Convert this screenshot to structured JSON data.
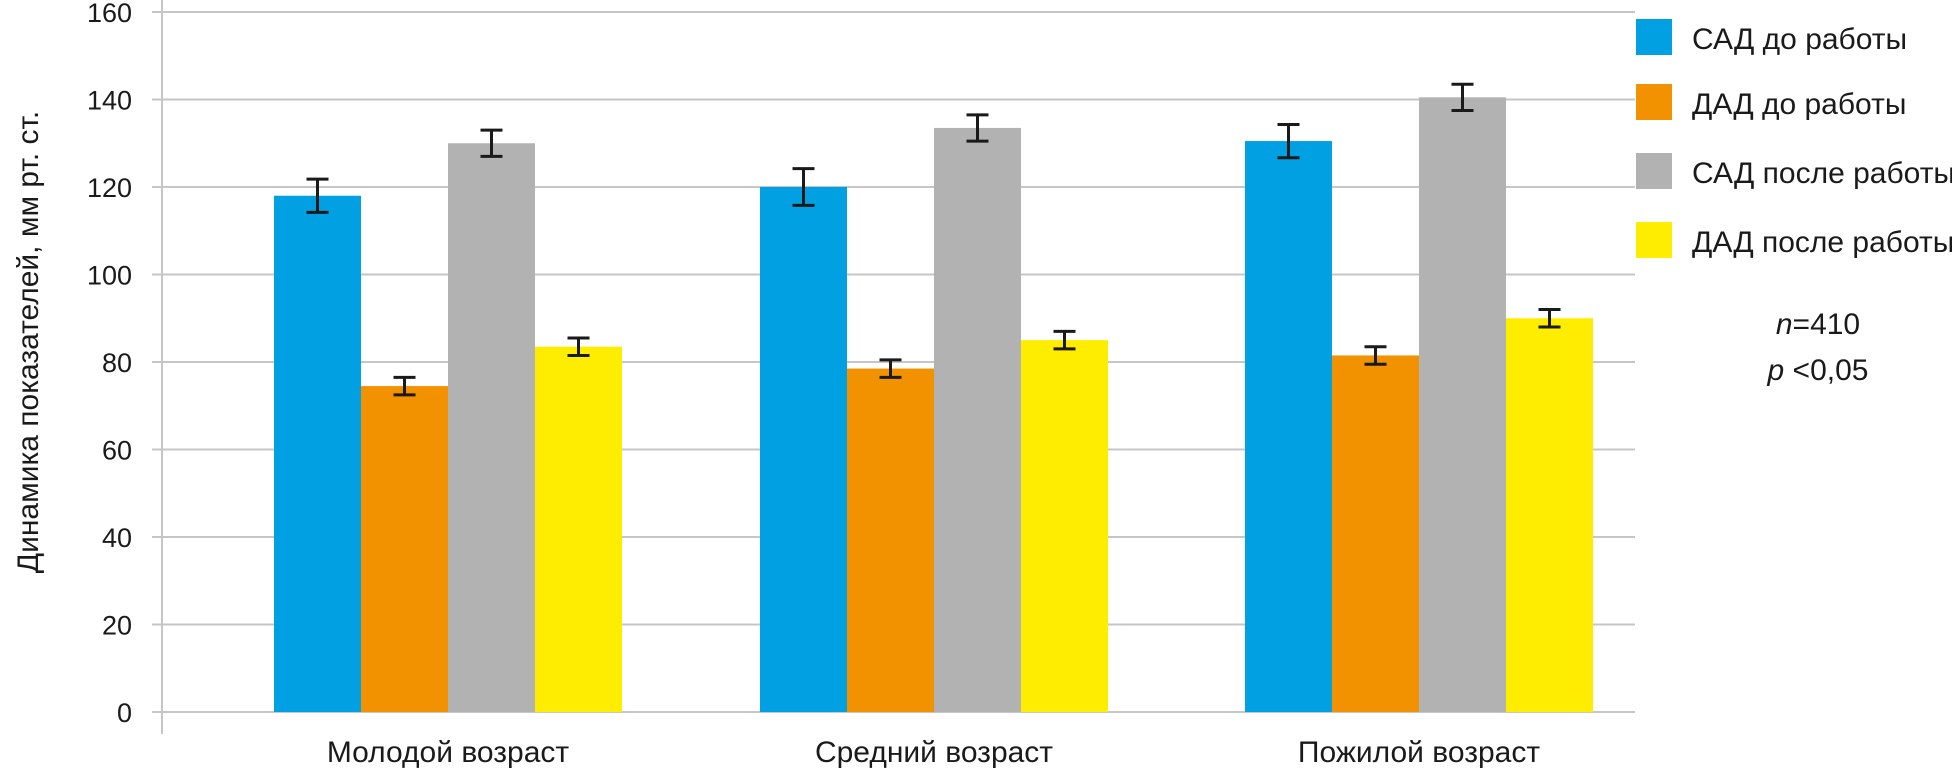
{
  "chart_data": {
    "type": "bar",
    "title": "",
    "xlabel": "",
    "ylabel": "Динамика показателей, мм рт. ст.",
    "ylim": [
      0,
      160
    ],
    "yticks": [
      0,
      20,
      40,
      60,
      80,
      100,
      120,
      140,
      160
    ],
    "grid": true,
    "legend_position": "right",
    "categories": [
      "Молодой возраст",
      "Средний возраст",
      "Пожилой возраст"
    ],
    "series": [
      {
        "name": "САД до работы",
        "color": "#00A0E3",
        "values": [
          118,
          120,
          130.5
        ],
        "errors": [
          3.8,
          4.2,
          3.8
        ]
      },
      {
        "name": "ДАД до работы",
        "color": "#F39200",
        "values": [
          74.5,
          78.5,
          81.5
        ],
        "errors": [
          2,
          2,
          2
        ]
      },
      {
        "name": "САД после работы",
        "color": "#B2B2B2",
        "values": [
          130,
          133.5,
          140.5
        ],
        "errors": [
          3,
          3,
          3
        ]
      },
      {
        "name": "ДАД после работы",
        "color": "#FFED00",
        "values": [
          83.5,
          85,
          90
        ],
        "errors": [
          2,
          2,
          2
        ]
      }
    ],
    "annotations": {
      "n_italic": "n",
      "n_value": "=410",
      "p_italic": "p",
      "p_value": " <0,05"
    }
  }
}
